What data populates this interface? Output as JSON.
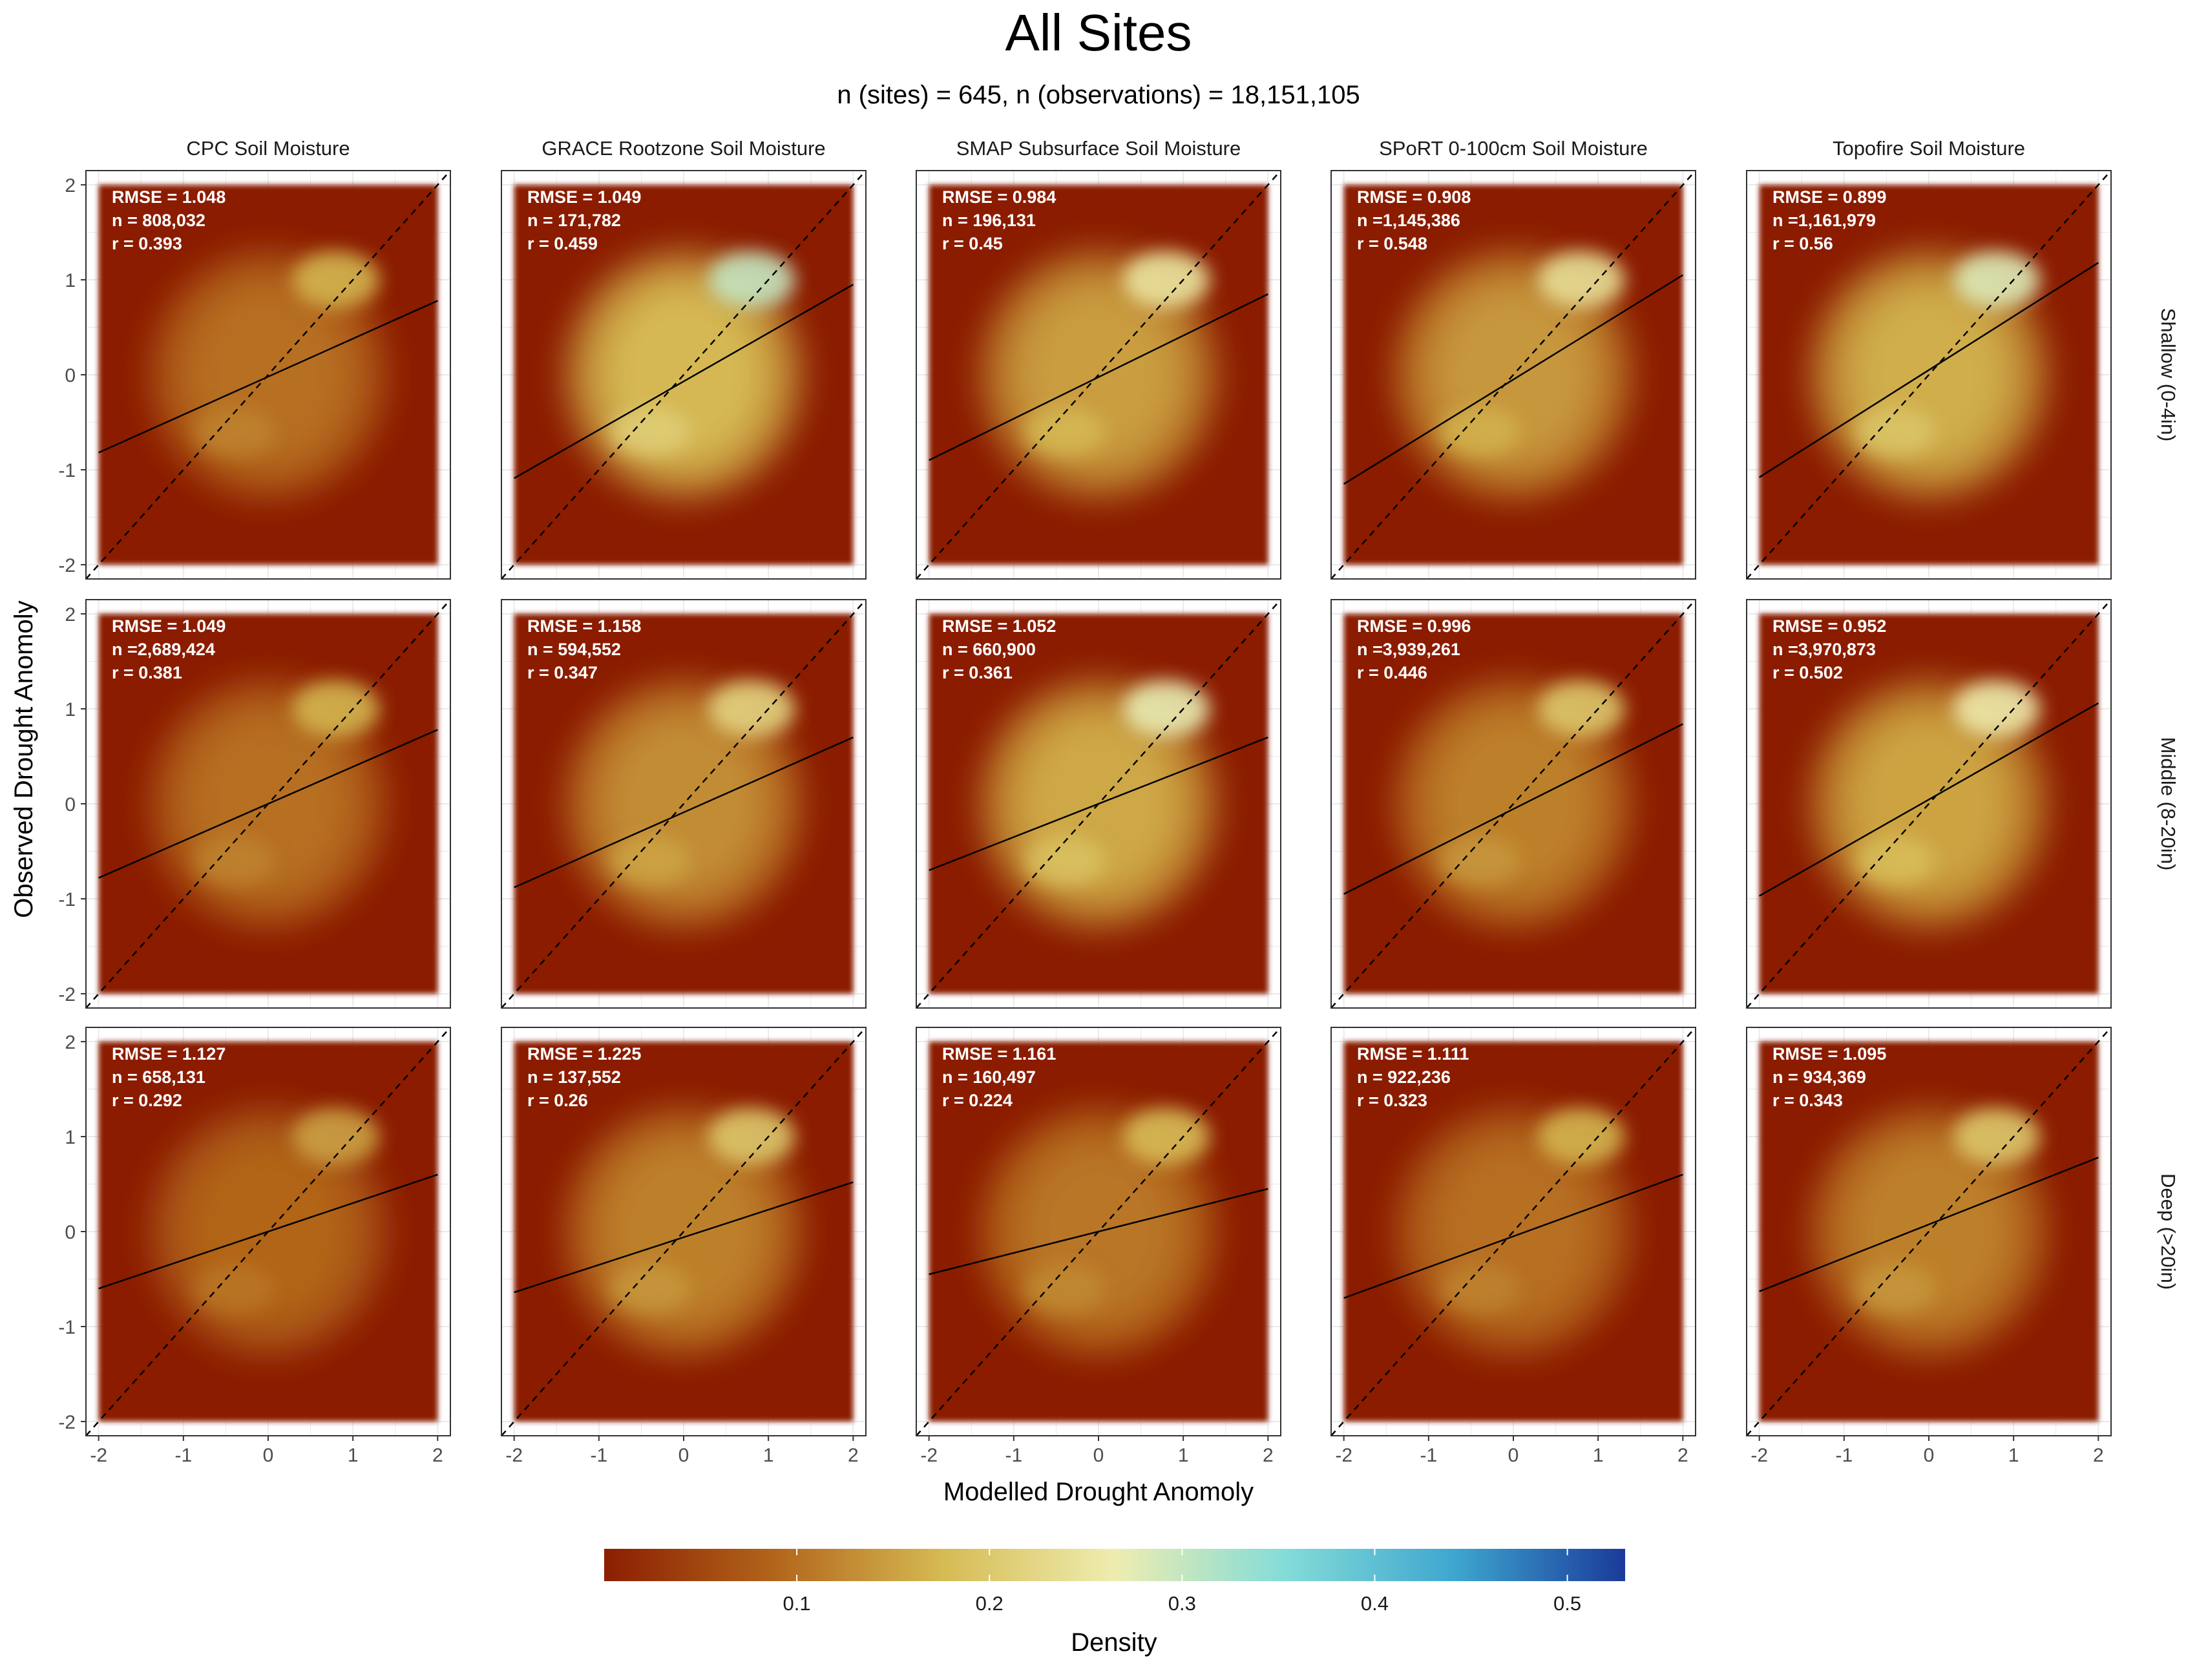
{
  "title": "All Sites",
  "subtitle": "n (sites) = 645, n (observations) = 18,151,105",
  "x_axis_label": "Modelled Drought Anomoly",
  "y_axis_label": "Observed Drought Anomoly",
  "legend": {
    "title": "Density",
    "ticks": [
      "0.1",
      "0.2",
      "0.3",
      "0.4",
      "0.5"
    ],
    "tick_values": [
      0.1,
      0.2,
      0.3,
      0.4,
      0.5
    ],
    "range": [
      0,
      0.53
    ],
    "stops": [
      "#8b1e02",
      "#b2651a",
      "#d6bb54",
      "#eeedb0",
      "#84dcd8",
      "#3ea6cf",
      "#1a3a9a"
    ],
    "position": "bottom"
  },
  "colors": {
    "background": "#8b1e02",
    "medium": "#c68d35",
    "high": "#e9dd8c",
    "peak": "#d3f1dc",
    "panel_grid": "#ebebeb",
    "panel_border": "#333333"
  },
  "chart_data": {
    "type": "heatmap",
    "columns": [
      "CPC Soil Moisture",
      "GRACE Rootzone Soil Moisture",
      "SMAP Subsurface Soil Moisture",
      "SPoRT 0-100cm Soil Moisture",
      "Topofire Soil Moisture"
    ],
    "rows": [
      "Shallow (0-4in)",
      "Middle (8-20in)",
      "Deep (>20in)"
    ],
    "xlim": [
      -2.15,
      2.15
    ],
    "ylim": [
      -2.15,
      2.15
    ],
    "xticks": [
      "-2",
      "-1",
      "0",
      "1",
      "2"
    ],
    "yticks": [
      "2",
      "1",
      "0",
      "-1",
      "-2"
    ],
    "grid": true,
    "reference_line": "1:1 dashed",
    "panels": [
      {
        "row": 0,
        "col": 0,
        "rmse": "RMSE = 1.048",
        "n": "n =  808,032",
        "r": "r = 0.393",
        "fit": [
          -0.82,
          0.78
        ],
        "peak": 0.17
      },
      {
        "row": 0,
        "col": 1,
        "rmse": "RMSE = 1.049",
        "n": "n =  171,782",
        "r": "r = 0.459",
        "fit": [
          -1.09,
          0.95
        ],
        "peak": 0.3
      },
      {
        "row": 0,
        "col": 2,
        "rmse": "RMSE = 0.984",
        "n": "n =  196,131",
        "r": "r = 0.45",
        "fit": [
          -0.9,
          0.85
        ],
        "peak": 0.25
      },
      {
        "row": 0,
        "col": 3,
        "rmse": "RMSE = 0.908",
        "n": "n =1,145,386",
        "r": "r = 0.548",
        "fit": [
          -1.15,
          1.05
        ],
        "peak": 0.24
      },
      {
        "row": 0,
        "col": 4,
        "rmse": "RMSE = 0.899",
        "n": "n =1,161,979",
        "r": "r = 0.56",
        "fit": [
          -1.08,
          1.18
        ],
        "peak": 0.28
      },
      {
        "row": 1,
        "col": 0,
        "rmse": "RMSE = 1.049",
        "n": "n =2,689,424",
        "r": "r = 0.381",
        "fit": [
          -0.78,
          0.78
        ],
        "peak": 0.17
      },
      {
        "row": 1,
        "col": 1,
        "rmse": "RMSE = 1.158",
        "n": "n =  594,552",
        "r": "r = 0.347",
        "fit": [
          -0.88,
          0.7
        ],
        "peak": 0.22
      },
      {
        "row": 1,
        "col": 2,
        "rmse": "RMSE = 1.052",
        "n": "n =  660,900",
        "r": "r = 0.361",
        "fit": [
          -0.7,
          0.7
        ],
        "peak": 0.27
      },
      {
        "row": 1,
        "col": 3,
        "rmse": "RMSE = 0.996",
        "n": "n =3,939,261",
        "r": "r = 0.446",
        "fit": [
          -0.95,
          0.84
        ],
        "peak": 0.2
      },
      {
        "row": 1,
        "col": 4,
        "rmse": "RMSE = 0.952",
        "n": "n =3,970,873",
        "r": "r = 0.502",
        "fit": [
          -0.97,
          1.06
        ],
        "peak": 0.26
      },
      {
        "row": 2,
        "col": 0,
        "rmse": "RMSE = 1.127",
        "n": "n =  658,131",
        "r": "r = 0.292",
        "fit": [
          -0.6,
          0.6
        ],
        "peak": 0.15
      },
      {
        "row": 2,
        "col": 1,
        "rmse": "RMSE = 1.225",
        "n": "n =  137,552",
        "r": "r = 0.26",
        "fit": [
          -0.64,
          0.52
        ],
        "peak": 0.2
      },
      {
        "row": 2,
        "col": 2,
        "rmse": "RMSE = 1.161",
        "n": "n =  160,497",
        "r": "r = 0.224",
        "fit": [
          -0.45,
          0.45
        ],
        "peak": 0.18
      },
      {
        "row": 2,
        "col": 3,
        "rmse": "RMSE = 1.111",
        "n": "n =  922,236",
        "r": "r = 0.323",
        "fit": [
          -0.7,
          0.6
        ],
        "peak": 0.17
      },
      {
        "row": 2,
        "col": 4,
        "rmse": "RMSE = 1.095",
        "n": "n =  934,369",
        "r": "r = 0.343",
        "fit": [
          -0.63,
          0.78
        ],
        "peak": 0.2
      }
    ]
  }
}
